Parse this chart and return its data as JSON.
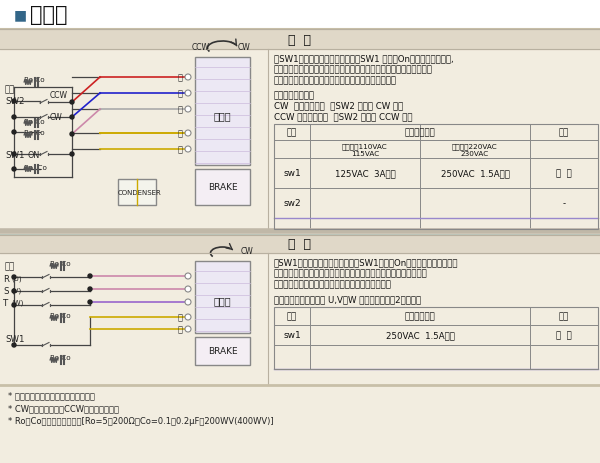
{
  "title": "接线图",
  "bg_color": "#f2ede0",
  "single_phase_header": "单  相",
  "three_phase_header": "三  相",
  "single_phase_text": [
    "用SW1来控制电机和制动系统。把SW1 连接在On点时电机开始运转,",
    "同时制动系统开始有效，维持负载。（若电机停止时要解除制动的话，",
    "把连接在制动装置的导线（黄色线）连接在电源既可。"
  ],
  "single_phase_text2": [
    "若要变更旋转方向",
    "CW  顺时针方向：  把SW2 连接在 CW 点上",
    "CCW 逆时针方向：  把SW2 连接在 CCW 点上"
  ],
  "three_phase_text": [
    "用SW1来控制电机和制动系统。把SW1连接在On点时电机开始运转，同",
    "时制动系统开始有效，维持负载。（若电机停止时要解除制动的话，",
    "把连接在制动装置的导线（黄色线）连接在电源既可"
  ],
  "three_phase_text2": "若要更换旋转方向，把 U,V，W 连线中任意调换2根既可。",
  "footer": [
    "* 旋转方向时电机输出轴的旋转方向。",
    "* CW为顺时针方向，CCW为逆时针方向。",
    "* Ro和Co是余电回收回路。[Ro=5～200Ω，Co=0.1～0.2μF，200WV(400WV)]"
  ],
  "wire_red": "#cc2222",
  "wire_blue": "#2222cc",
  "wire_white": "#aaaaaa",
  "wire_yellow": "#ccaa00",
  "wire_pink": "#cc88aa",
  "wire_purple": "#9966cc",
  "separator_color": "#c8bfa8",
  "header_bg": "#e0d8c8",
  "table_border": "#888888",
  "table_purple_line": "#9988cc"
}
